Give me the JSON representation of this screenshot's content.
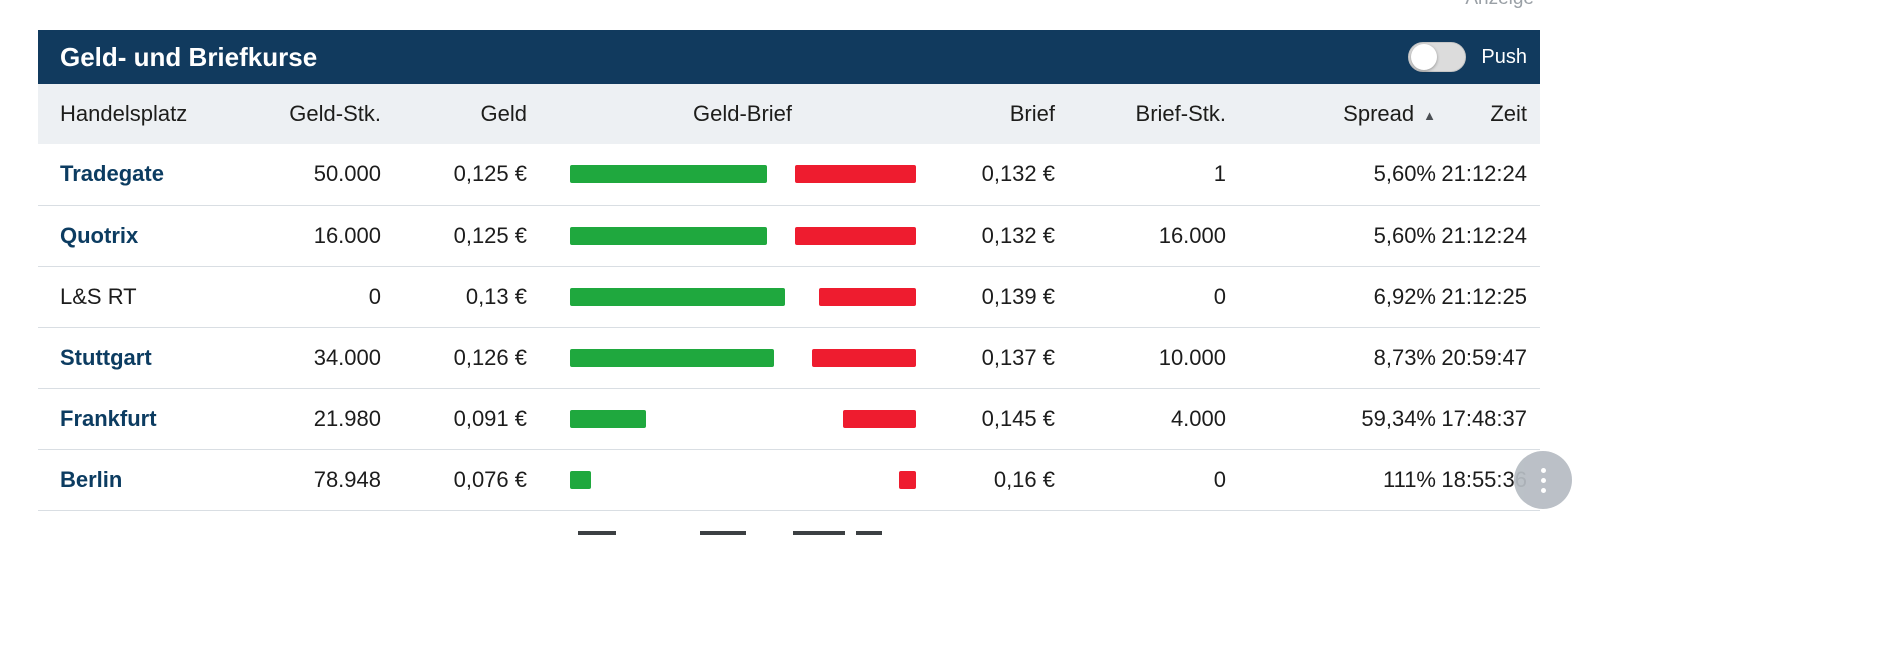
{
  "page": {
    "ad_label": "Anzeige"
  },
  "widget": {
    "title": "Geld- und Briefkurse",
    "push_toggle": {
      "label": "Push",
      "state": "off"
    }
  },
  "table": {
    "columns": [
      {
        "label": "Handelsplatz"
      },
      {
        "label": "Geld-Stk."
      },
      {
        "label": "Geld"
      },
      {
        "label": "Geld-Brief"
      },
      {
        "label": "Brief"
      },
      {
        "label": "Brief-Stk."
      },
      {
        "label": "Spread",
        "sort": "ascending"
      },
      {
        "label": "Zeit"
      }
    ],
    "rows": [
      {
        "venue": "Tradegate",
        "venue_is_link": true,
        "bid_size": "50.000",
        "bid": "0,125 €",
        "bar_green_pct": 57,
        "bar_red_pct": 35,
        "ask": "0,132 €",
        "ask_size": "1",
        "spread": "5,60%",
        "time": "21:12:24"
      },
      {
        "venue": "Quotrix",
        "venue_is_link": true,
        "bid_size": "16.000",
        "bid": "0,125 €",
        "bar_green_pct": 57,
        "bar_red_pct": 35,
        "ask": "0,132 €",
        "ask_size": "16.000",
        "spread": "5,60%",
        "time": "21:12:24"
      },
      {
        "venue": "L&S RT",
        "venue_is_link": false,
        "bid_size": "0",
        "bid": "0,13 €",
        "bar_green_pct": 62,
        "bar_red_pct": 28,
        "ask": "0,139 €",
        "ask_size": "0",
        "spread": "6,92%",
        "time": "21:12:25"
      },
      {
        "venue": "Stuttgart",
        "venue_is_link": true,
        "bid_size": "34.000",
        "bid": "0,126 €",
        "bar_green_pct": 59,
        "bar_red_pct": 30,
        "ask": "0,137 €",
        "ask_size": "10.000",
        "spread": "8,73%",
        "time": "20:59:47"
      },
      {
        "venue": "Frankfurt",
        "venue_is_link": true,
        "bid_size": "21.980",
        "bid": "0,091 €",
        "bar_green_pct": 22,
        "bar_red_pct": 21,
        "ask": "0,145 €",
        "ask_size": "4.000",
        "spread": "59,34%",
        "time": "17:48:37"
      },
      {
        "venue": "Berlin",
        "venue_is_link": true,
        "bid_size": "78.948",
        "bid": "0,076 €",
        "bar_green_pct": 6,
        "bar_red_pct": 5,
        "ask": "0,16 €",
        "ask_size": "0",
        "spread": "111%",
        "time": "18:55:36"
      }
    ]
  },
  "colors": {
    "header_navy": "#113a5e",
    "link_navy": "#0c3c61",
    "bid_green": "#1fa83e",
    "ask_red": "#ee1c2f",
    "header_row_bg": "#edf0f3",
    "row_divider": "#d9dee3"
  }
}
